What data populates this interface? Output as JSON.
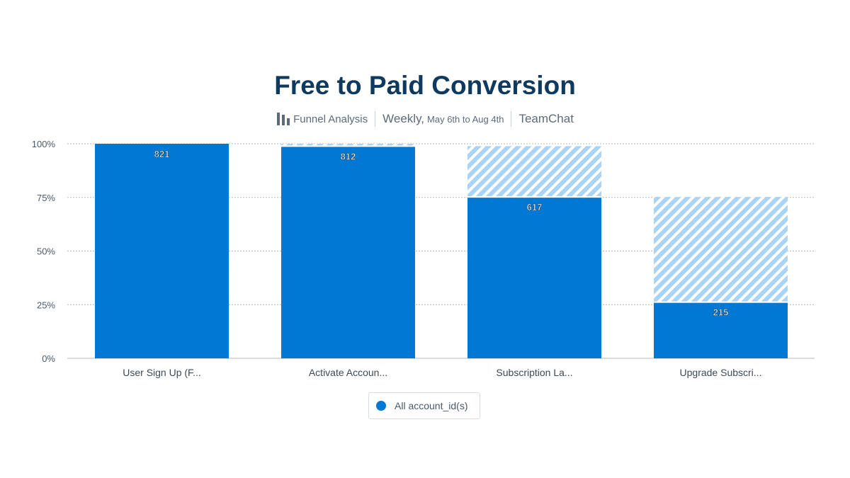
{
  "header": {
    "title": "Free to Paid Conversion",
    "analysis_label": "Funnel Analysis",
    "frequency": "Weekly,",
    "date_range": "May 6th to Aug 4th",
    "project": "TeamChat"
  },
  "icons": {
    "analysis": "funnel-chart-icon"
  },
  "colors": {
    "bar": "#0078d4",
    "dropoff": "#a9d4f5",
    "text": "#0f3a5f",
    "grid": "#b0b8c0"
  },
  "chart_data": {
    "type": "bar",
    "categories": [
      "User Sign Up (F...",
      "Activate Accoun...",
      "Subscription La...",
      "Upgrade Subscri..."
    ],
    "y_tick_labels": [
      "0%",
      "25%",
      "50%",
      "75%",
      "100%"
    ],
    "ylim": [
      0,
      100
    ],
    "grid": true,
    "legend_position": "bottom",
    "series": [
      {
        "name": "All account_id(s)",
        "counts": [
          821,
          812,
          617,
          215
        ],
        "conversion_pct": [
          100,
          98.9,
          75.2,
          26.2
        ],
        "previous_step_pct": [
          100,
          100,
          98.9,
          75.2
        ]
      }
    ]
  }
}
